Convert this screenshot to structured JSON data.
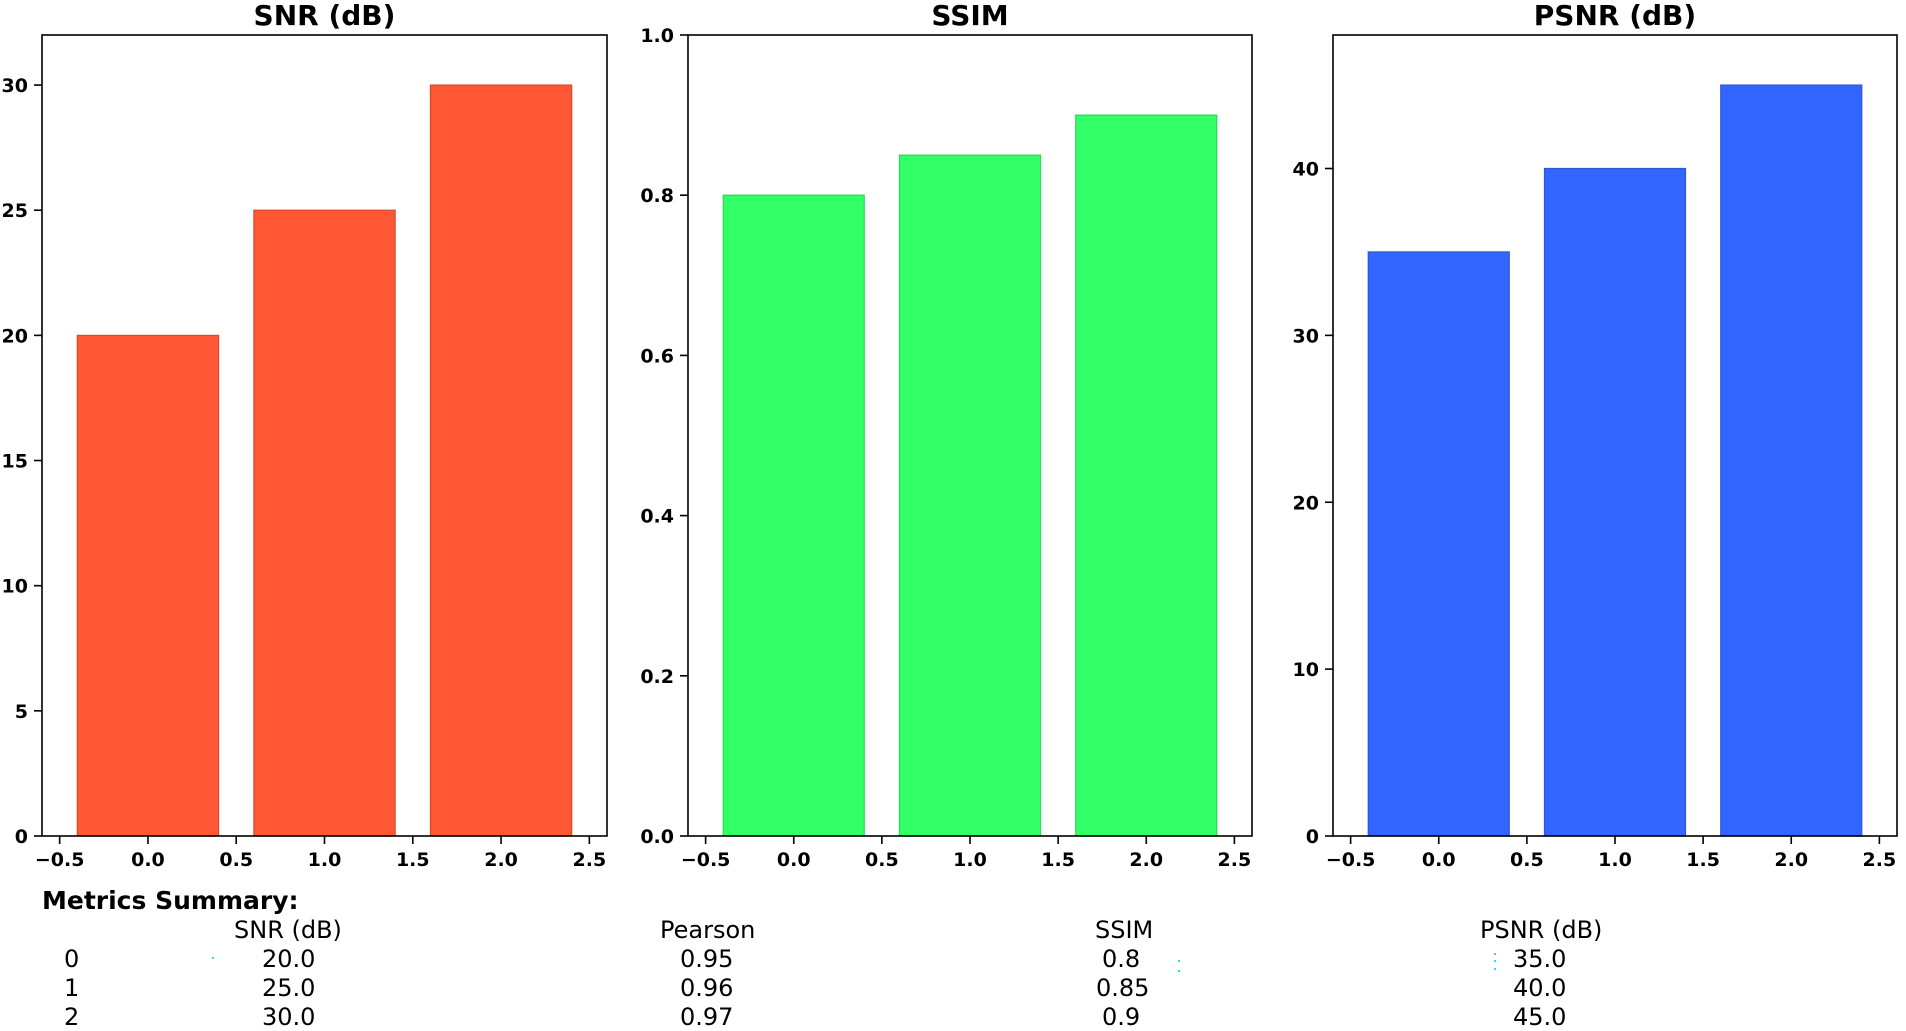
{
  "chart_data": [
    {
      "type": "bar",
      "title": "SNR (dB)",
      "categories": [
        0,
        1,
        2
      ],
      "values": [
        20.0,
        25.0,
        30.0
      ],
      "color": "#ff5733",
      "xlim": [
        -0.6,
        2.6
      ],
      "ylim": [
        0,
        32
      ],
      "xticks": [
        -0.5,
        0.0,
        0.5,
        1.0,
        1.5,
        2.0,
        2.5
      ],
      "xtick_labels": [
        "−0.5",
        "0.0",
        "0.5",
        "1.0",
        "1.5",
        "2.0",
        "2.5"
      ],
      "yticks": [
        0,
        5,
        10,
        15,
        20,
        25,
        30
      ],
      "ytick_labels": [
        "0",
        "5",
        "10",
        "15",
        "20",
        "25",
        "30"
      ]
    },
    {
      "type": "bar",
      "title": "SSIM",
      "categories": [
        0,
        1,
        2
      ],
      "values": [
        0.8,
        0.85,
        0.9
      ],
      "color": "#33ff66",
      "xlim": [
        -0.6,
        2.6
      ],
      "ylim": [
        0,
        1.0
      ],
      "xticks": [
        -0.5,
        0.0,
        0.5,
        1.0,
        1.5,
        2.0,
        2.5
      ],
      "xtick_labels": [
        "−0.5",
        "0.0",
        "0.5",
        "1.0",
        "1.5",
        "2.0",
        "2.5"
      ],
      "yticks": [
        0.0,
        0.2,
        0.4,
        0.6,
        0.8,
        1.0
      ],
      "ytick_labels": [
        "0.0",
        "0.2",
        "0.4",
        "0.6",
        "0.8",
        "1.0"
      ]
    },
    {
      "type": "bar",
      "title": "PSNR (dB)",
      "categories": [
        0,
        1,
        2
      ],
      "values": [
        35.0,
        40.0,
        45.0
      ],
      "color": "#3366ff",
      "xlim": [
        -0.6,
        2.6
      ],
      "ylim": [
        0,
        48
      ],
      "xticks": [
        -0.5,
        0.0,
        0.5,
        1.0,
        1.5,
        2.0,
        2.5
      ],
      "xtick_labels": [
        "−0.5",
        "0.0",
        "0.5",
        "1.0",
        "1.5",
        "2.0",
        "2.5"
      ],
      "yticks": [
        0,
        10,
        20,
        30,
        40
      ],
      "ytick_labels": [
        "0",
        "10",
        "20",
        "30",
        "40"
      ]
    }
  ],
  "summary": {
    "title": "Metrics Summary:",
    "columns": [
      "SNR (dB)",
      "Pearson",
      "SSIM",
      "PSNR (dB)"
    ],
    "index": [
      "0",
      "1",
      "2"
    ],
    "rows": [
      [
        "20.0",
        "0.95",
        "0.8",
        "35.0"
      ],
      [
        "25.0",
        "0.96",
        "0.85",
        "40.0"
      ],
      [
        "30.0",
        "0.97",
        "0.9",
        "45.0"
      ]
    ]
  }
}
